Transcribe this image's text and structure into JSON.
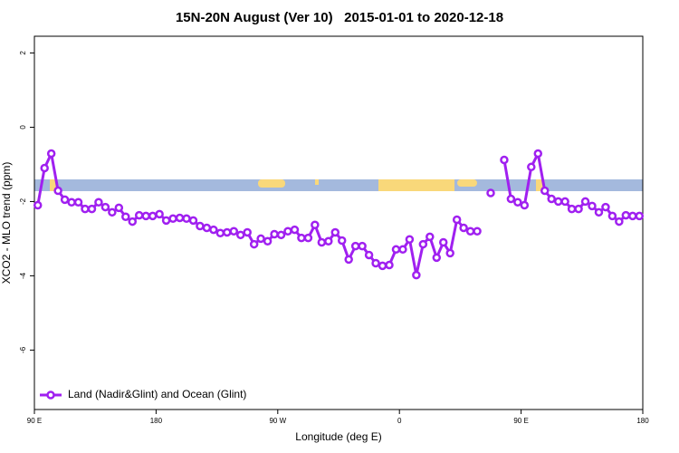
{
  "chart_data": {
    "type": "line",
    "title": "15N-20N August (Ver 10)   2015-01-01 to 2020-12-18",
    "xlabel": "Longitude (deg E)",
    "ylabel": "XCO2 - MLO trend (ppm)",
    "xlim": [
      90,
      540
    ],
    "ylim": [
      -7.6,
      2.45
    ],
    "xticks": [
      {
        "value": 90,
        "label": "90 E"
      },
      180,
      {
        "value": 270,
        "label": "90 W"
      },
      {
        "value": 360,
        "label": "0"
      },
      {
        "value": 450,
        "label": "90 E"
      },
      {
        "value": 540,
        "label": "180"
      }
    ],
    "yticks": [
      2,
      0,
      -2,
      -4,
      -6
    ],
    "legend": "bottom-left",
    "x": [
      92.5,
      97.5,
      102.5,
      107.5,
      112.5,
      117.5,
      122.5,
      127.5,
      132.5,
      137.5,
      142.5,
      147.5,
      152.5,
      157.5,
      162.5,
      167.5,
      172.5,
      177.5,
      182.5,
      187.5,
      192.5,
      197.5,
      202.5,
      207.5,
      212.5,
      217.5,
      222.5,
      227.5,
      232.5,
      237.5,
      242.5,
      247.5,
      252.5,
      257.5,
      262.5,
      267.5,
      272.5,
      277.5,
      282.5,
      287.5,
      292.5,
      297.5,
      302.5,
      307.5,
      312.5,
      317.5,
      322.5,
      327.5,
      332.5,
      337.5,
      342.5,
      347.5,
      352.5,
      357.5,
      362.5,
      367.5,
      372.5,
      377.5,
      382.5,
      387.5,
      392.5,
      397.5,
      402.5,
      407.5,
      412.5,
      417.5,
      422.5,
      427.5,
      432.5,
      437.5,
      442.5,
      447.5,
      452.5,
      457.5,
      462.5,
      467.5,
      472.5,
      477.5,
      482.5,
      487.5,
      492.5,
      497.5,
      502.5,
      507.5,
      512.5,
      517.5,
      522.5,
      527.5,
      532.5,
      537.5
    ],
    "series": [
      {
        "name": "Land (Nadir&Glint) and Ocean (Glint)",
        "color": "#a020f0",
        "values": [
          -2.1,
          -1.1,
          -0.71,
          -1.71,
          -1.95,
          -2.02,
          -2.02,
          -2.2,
          -2.2,
          -2.02,
          -2.15,
          -2.29,
          -2.17,
          -2.41,
          -2.54,
          -2.37,
          -2.39,
          -2.39,
          -2.34,
          -2.51,
          -2.46,
          -2.44,
          -2.46,
          -2.51,
          -2.66,
          -2.71,
          -2.76,
          -2.85,
          -2.83,
          -2.8,
          -2.9,
          -2.83,
          -3.15,
          -3.0,
          -3.07,
          -2.88,
          -2.9,
          -2.8,
          -2.76,
          -2.98,
          -2.98,
          -2.63,
          -3.1,
          -3.07,
          -2.83,
          -3.05,
          -3.56,
          -3.2,
          -3.2,
          -3.44,
          -3.66,
          -3.73,
          -3.71,
          -3.29,
          -3.29,
          -3.02,
          -3.98,
          -3.15,
          -2.95,
          -3.51,
          -3.1,
          -3.39,
          -2.49,
          -2.71,
          -2.8,
          -2.8,
          null,
          -1.77,
          null,
          -0.88,
          -1.93,
          -2.02,
          -2.1,
          -1.07,
          -0.71,
          -1.71,
          -1.93,
          -2.0,
          -2.0,
          -2.2,
          -2.2,
          -2.0,
          -2.12,
          -2.29,
          -2.15,
          -2.39,
          -2.54,
          -2.37,
          -2.39,
          -2.39
        ]
      }
    ]
  }
}
